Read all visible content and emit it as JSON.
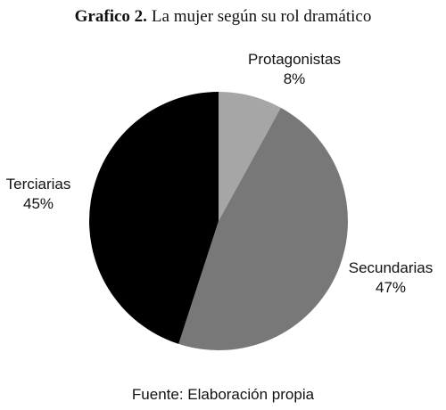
{
  "chart_data": {
    "type": "pie",
    "title_label": "Grafico 2.",
    "title": "La mujer según su rol dramático",
    "categories": [
      "Protagonistas",
      "Secundarias",
      "Terciarias"
    ],
    "values": [
      8,
      47,
      45
    ],
    "value_labels": [
      "8%",
      "47%",
      "45%"
    ],
    "colors": [
      "#a6a6a6",
      "#787878",
      "#000000"
    ],
    "source": "Fuente: Elaboración propia"
  }
}
